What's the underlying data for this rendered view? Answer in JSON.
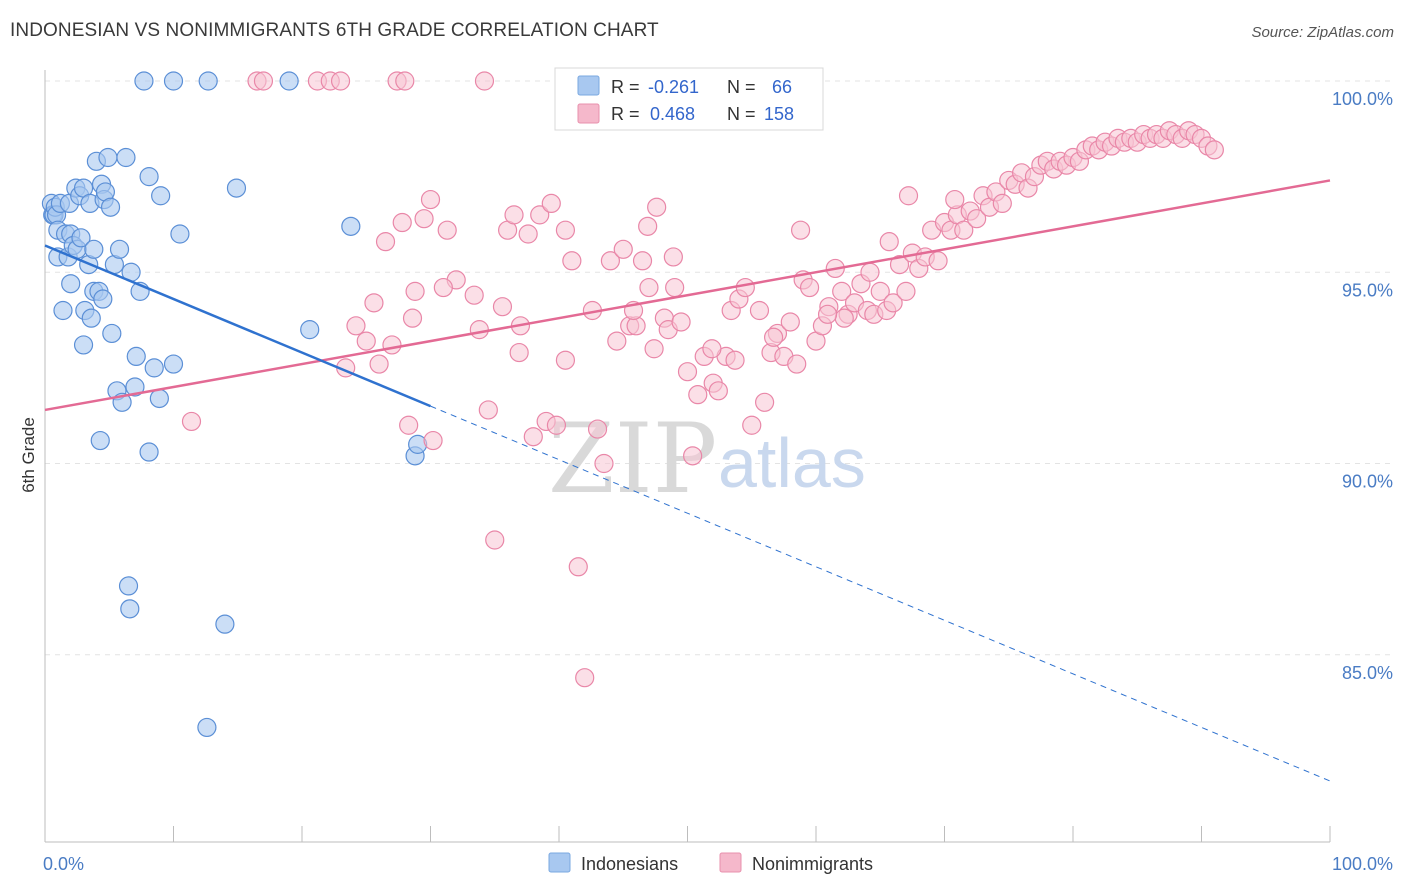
{
  "header": {
    "title": "INDONESIAN VS NONIMMIGRANTS 6TH GRADE CORRELATION CHART",
    "source": "Source: ZipAtlas.com"
  },
  "watermark": {
    "zip": "ZIP",
    "atlas": "atlas"
  },
  "legend_box": {
    "rows": [
      {
        "r_label": "R =",
        "r_value": "-0.261",
        "n_label": "N =",
        "n_value": "66",
        "color": "#a8c8f0"
      },
      {
        "r_label": "R =",
        "r_value": "0.468",
        "n_label": "N =",
        "n_value": "158",
        "color": "#f5b8cb"
      }
    ]
  },
  "bottom_legend": {
    "items": [
      {
        "label": "Indonesians",
        "color": "#a8c8f0"
      },
      {
        "label": "Nonimmigrants",
        "color": "#f5b8cb"
      }
    ]
  },
  "colors": {
    "indonesians_fill": "#a8c8f0",
    "indonesians_stroke": "#5b8fd6",
    "indonesians_line": "#2f72cf",
    "nonimmigrants_fill": "#f7c4d4",
    "nonimmigrants_stroke": "#e987a8",
    "nonimmigrants_line": "#e36a94",
    "tick_text": "#4a7cc4",
    "grid": "#e3e3e3"
  },
  "chart_data": {
    "type": "scatter",
    "title": "INDONESIAN VS NONIMMIGRANTS 6TH GRADE CORRELATION CHART",
    "xlabel": "",
    "ylabel": "6th Grade",
    "xlim": [
      0,
      100
    ],
    "ylim": [
      80.5,
      100.7
    ],
    "x_tick_labels": [
      "0.0%",
      "100.0%"
    ],
    "y_ticks": [
      85,
      90,
      95,
      100
    ],
    "y_tick_labels": [
      "85.0%",
      "90.0%",
      "95.0%",
      "100.0%"
    ],
    "grid": true,
    "legend_position": "bottom",
    "series": [
      {
        "name": "Indonesians",
        "R": -0.261,
        "N": 66,
        "trendline": {
          "x": [
            0,
            30
          ],
          "y": [
            95.7,
            91.5
          ],
          "dashed_extension": {
            "x": [
              30,
              100
            ],
            "y": [
              91.5,
              81.7
            ]
          }
        },
        "points": [
          [
            0.5,
            96.8
          ],
          [
            0.6,
            96.5
          ],
          [
            0.7,
            96.5
          ],
          [
            0.8,
            96.7
          ],
          [
            0.9,
            96.5
          ],
          [
            1.0,
            95.4
          ],
          [
            1.0,
            96.1
          ],
          [
            1.2,
            96.8
          ],
          [
            1.4,
            94.0
          ],
          [
            1.6,
            96.0
          ],
          [
            1.8,
            95.4
          ],
          [
            1.9,
            96.8
          ],
          [
            2.0,
            96.0
          ],
          [
            2.0,
            94.7
          ],
          [
            2.2,
            95.7
          ],
          [
            2.4,
            97.2
          ],
          [
            2.5,
            95.6
          ],
          [
            2.7,
            97.0
          ],
          [
            2.8,
            95.9
          ],
          [
            3.0,
            97.2
          ],
          [
            3.0,
            93.1
          ],
          [
            3.1,
            94.0
          ],
          [
            3.4,
            95.2
          ],
          [
            3.5,
            96.8
          ],
          [
            3.6,
            93.8
          ],
          [
            3.8,
            94.5
          ],
          [
            3.8,
            95.6
          ],
          [
            4.0,
            97.9
          ],
          [
            4.2,
            94.5
          ],
          [
            4.3,
            90.6
          ],
          [
            4.4,
            97.3
          ],
          [
            4.5,
            94.3
          ],
          [
            4.6,
            96.9
          ],
          [
            4.7,
            97.1
          ],
          [
            4.9,
            98.0
          ],
          [
            5.1,
            96.7
          ],
          [
            5.2,
            93.4
          ],
          [
            5.4,
            95.2
          ],
          [
            5.6,
            91.9
          ],
          [
            5.8,
            95.6
          ],
          [
            6.0,
            91.6
          ],
          [
            6.3,
            98.0
          ],
          [
            6.5,
            86.8
          ],
          [
            6.6,
            86.2
          ],
          [
            6.7,
            95.0
          ],
          [
            7.0,
            92.0
          ],
          [
            7.1,
            92.8
          ],
          [
            7.4,
            94.5
          ],
          [
            7.7,
            100.0
          ],
          [
            8.1,
            97.5
          ],
          [
            8.1,
            90.3
          ],
          [
            8.5,
            92.5
          ],
          [
            8.9,
            91.7
          ],
          [
            9.0,
            97.0
          ],
          [
            10.0,
            92.6
          ],
          [
            10.0,
            100.0
          ],
          [
            10.5,
            96.0
          ],
          [
            12.7,
            100.0
          ],
          [
            14.0,
            85.8
          ],
          [
            12.6,
            83.1
          ],
          [
            14.9,
            97.2
          ],
          [
            19.0,
            100.0
          ],
          [
            20.6,
            93.5
          ],
          [
            23.8,
            96.2
          ],
          [
            28.8,
            90.2
          ],
          [
            29.0,
            90.5
          ]
        ]
      },
      {
        "name": "Nonimmigrants",
        "R": 0.468,
        "N": 158,
        "trendline": {
          "x": [
            0,
            100
          ],
          "y": [
            91.4,
            97.4
          ]
        },
        "points": [
          [
            11.4,
            91.1
          ],
          [
            16.5,
            100.0
          ],
          [
            17.0,
            100.0
          ],
          [
            21.2,
            100.0
          ],
          [
            22.2,
            100.0
          ],
          [
            23.0,
            100.0
          ],
          [
            27.4,
            100.0
          ],
          [
            28.0,
            100.0
          ],
          [
            34.2,
            100.0
          ],
          [
            23.4,
            92.5
          ],
          [
            24.2,
            93.6
          ],
          [
            25.0,
            93.2
          ],
          [
            25.6,
            94.2
          ],
          [
            26.0,
            92.6
          ],
          [
            26.5,
            95.8
          ],
          [
            27.0,
            93.1
          ],
          [
            27.8,
            96.3
          ],
          [
            28.3,
            91.0
          ],
          [
            28.8,
            94.5
          ],
          [
            29.5,
            96.4
          ],
          [
            30.0,
            96.9
          ],
          [
            30.2,
            90.6
          ],
          [
            31.3,
            96.1
          ],
          [
            32.0,
            94.8
          ],
          [
            33.4,
            94.4
          ],
          [
            33.8,
            93.5
          ],
          [
            34.5,
            91.4
          ],
          [
            35.0,
            88.0
          ],
          [
            35.6,
            94.1
          ],
          [
            36.0,
            96.1
          ],
          [
            36.5,
            96.5
          ],
          [
            37.0,
            93.6
          ],
          [
            37.6,
            96.0
          ],
          [
            38.0,
            90.7
          ],
          [
            38.5,
            96.5
          ],
          [
            39.0,
            91.1
          ],
          [
            39.4,
            96.8
          ],
          [
            39.8,
            91.0
          ],
          [
            40.5,
            92.7
          ],
          [
            40.5,
            96.1
          ],
          [
            41.0,
            95.3
          ],
          [
            41.5,
            87.3
          ],
          [
            42.0,
            84.4
          ],
          [
            42.6,
            94.0
          ],
          [
            43.0,
            90.9
          ],
          [
            43.5,
            90.0
          ],
          [
            44.0,
            95.3
          ],
          [
            44.5,
            93.2
          ],
          [
            45.0,
            95.6
          ],
          [
            45.5,
            93.6
          ],
          [
            46.0,
            93.6
          ],
          [
            46.5,
            95.3
          ],
          [
            47.0,
            94.6
          ],
          [
            47.4,
            93.0
          ],
          [
            47.6,
            96.7
          ],
          [
            48.2,
            93.8
          ],
          [
            48.5,
            93.5
          ],
          [
            49.0,
            94.6
          ],
          [
            49.5,
            93.7
          ],
          [
            50.0,
            92.4
          ],
          [
            50.4,
            90.2
          ],
          [
            50.8,
            91.8
          ],
          [
            51.3,
            92.8
          ],
          [
            52.0,
            92.1
          ],
          [
            52.4,
            91.9
          ],
          [
            53.0,
            92.8
          ],
          [
            53.4,
            94.0
          ],
          [
            54.0,
            94.3
          ],
          [
            54.5,
            94.6
          ],
          [
            55.0,
            91.0
          ],
          [
            55.6,
            94.0
          ],
          [
            56.0,
            91.6
          ],
          [
            56.5,
            92.9
          ],
          [
            57.0,
            93.4
          ],
          [
            57.5,
            92.8
          ],
          [
            58.0,
            93.7
          ],
          [
            58.5,
            92.6
          ],
          [
            59.0,
            94.8
          ],
          [
            59.5,
            94.6
          ],
          [
            60.0,
            93.2
          ],
          [
            60.5,
            93.6
          ],
          [
            61.0,
            94.1
          ],
          [
            61.5,
            95.1
          ],
          [
            62.0,
            94.5
          ],
          [
            62.5,
            93.9
          ],
          [
            63.0,
            94.2
          ],
          [
            63.5,
            94.7
          ],
          [
            64.0,
            94.0
          ],
          [
            64.5,
            93.9
          ],
          [
            65.0,
            94.5
          ],
          [
            65.5,
            94.0
          ],
          [
            66.0,
            94.2
          ],
          [
            66.5,
            95.2
          ],
          [
            67.0,
            94.5
          ],
          [
            67.5,
            95.5
          ],
          [
            68.0,
            95.1
          ],
          [
            68.5,
            95.4
          ],
          [
            69.0,
            96.1
          ],
          [
            69.5,
            95.3
          ],
          [
            70.0,
            96.3
          ],
          [
            70.5,
            96.1
          ],
          [
            71.0,
            96.5
          ],
          [
            71.5,
            96.1
          ],
          [
            72.0,
            96.6
          ],
          [
            72.5,
            96.4
          ],
          [
            73.0,
            97.0
          ],
          [
            73.5,
            96.7
          ],
          [
            74.0,
            97.1
          ],
          [
            74.5,
            96.8
          ],
          [
            75.0,
            97.4
          ],
          [
            75.5,
            97.3
          ],
          [
            76.0,
            97.6
          ],
          [
            76.5,
            97.2
          ],
          [
            77.0,
            97.5
          ],
          [
            77.5,
            97.8
          ],
          [
            78.0,
            97.9
          ],
          [
            78.5,
            97.7
          ],
          [
            79.0,
            97.9
          ],
          [
            79.5,
            97.8
          ],
          [
            80.0,
            98.0
          ],
          [
            80.5,
            97.9
          ],
          [
            81.0,
            98.2
          ],
          [
            81.5,
            98.3
          ],
          [
            82.0,
            98.2
          ],
          [
            82.5,
            98.4
          ],
          [
            83.0,
            98.3
          ],
          [
            83.5,
            98.5
          ],
          [
            84.0,
            98.4
          ],
          [
            84.5,
            98.5
          ],
          [
            85.0,
            98.4
          ],
          [
            85.5,
            98.6
          ],
          [
            86.0,
            98.5
          ],
          [
            86.5,
            98.6
          ],
          [
            87.0,
            98.5
          ],
          [
            87.5,
            98.7
          ],
          [
            88.0,
            98.6
          ],
          [
            88.5,
            98.5
          ],
          [
            89.0,
            98.7
          ],
          [
            89.5,
            98.6
          ],
          [
            90.0,
            98.5
          ],
          [
            90.5,
            98.3
          ],
          [
            91.0,
            98.2
          ],
          [
            67.2,
            97.0
          ],
          [
            70.8,
            96.9
          ],
          [
            64.2,
            95.0
          ],
          [
            58.8,
            96.1
          ],
          [
            62.2,
            93.8
          ],
          [
            53.7,
            92.7
          ],
          [
            48.9,
            95.4
          ],
          [
            46.9,
            96.2
          ],
          [
            36.9,
            92.9
          ],
          [
            31.0,
            94.6
          ],
          [
            28.6,
            93.8
          ],
          [
            45.8,
            94.0
          ],
          [
            51.9,
            93.0
          ],
          [
            56.7,
            93.3
          ],
          [
            60.9,
            93.9
          ],
          [
            65.7,
            95.8
          ]
        ]
      }
    ]
  }
}
